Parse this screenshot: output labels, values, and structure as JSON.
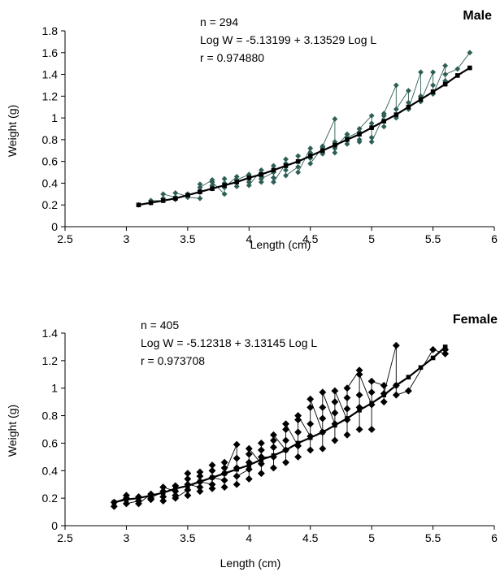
{
  "chart_data": [
    {
      "type": "line",
      "title": "Male",
      "xlabel": "Length (cm)",
      "ylabel": "Weight (g)",
      "xlim": [
        2.5,
        6
      ],
      "ylim": [
        0,
        1.8
      ],
      "xticks": [
        "2.5",
        "3",
        "3.5",
        "4",
        "4.5",
        "5",
        "5.5",
        "6"
      ],
      "yticks": [
        "0",
        "0.2",
        "0.4",
        "0.6",
        "0.8",
        "1",
        "1.2",
        "1.4",
        "1.6",
        "1.8"
      ],
      "annotations": [
        "n = 294",
        "Log W = -5.13199 + 3.13529 Log L",
        "r = 0.974880"
      ],
      "colors": {
        "observed": "#2e5e55",
        "fitted": "#000000"
      },
      "series": [
        {
          "role": "observed",
          "x": [
            3.1,
            3.2,
            3.2,
            3.3,
            3.3,
            3.3,
            3.4,
            3.4,
            3.4,
            3.5,
            3.5,
            3.5,
            3.6,
            3.6,
            3.6,
            3.6,
            3.7,
            3.7,
            3.7,
            3.7,
            3.8,
            3.8,
            3.8,
            3.8,
            3.9,
            3.9,
            3.9,
            3.9,
            4.0,
            4.0,
            4.0,
            4.0,
            4.1,
            4.1,
            4.1,
            4.1,
            4.2,
            4.2,
            4.2,
            4.2,
            4.3,
            4.3,
            4.3,
            4.3,
            4.4,
            4.4,
            4.4,
            4.4,
            4.5,
            4.5,
            4.5,
            4.5,
            4.6,
            4.6,
            4.6,
            4.7,
            4.7,
            4.7,
            4.7,
            4.8,
            4.8,
            4.8,
            4.9,
            4.9,
            4.9,
            4.9,
            5.0,
            5.0,
            5.0,
            5.0,
            5.1,
            5.1,
            5.1,
            5.2,
            5.2,
            5.2,
            5.3,
            5.3,
            5.3,
            5.4,
            5.4,
            5.4,
            5.5,
            5.5,
            5.5,
            5.6,
            5.6,
            5.6,
            5.7,
            5.8
          ],
          "y": [
            0.2,
            0.22,
            0.24,
            0.24,
            0.26,
            0.3,
            0.27,
            0.25,
            0.31,
            0.28,
            0.3,
            0.27,
            0.26,
            0.39,
            0.33,
            0.36,
            0.43,
            0.38,
            0.35,
            0.41,
            0.3,
            0.4,
            0.44,
            0.36,
            0.46,
            0.41,
            0.37,
            0.43,
            0.48,
            0.44,
            0.41,
            0.38,
            0.52,
            0.46,
            0.41,
            0.44,
            0.5,
            0.56,
            0.45,
            0.41,
            0.58,
            0.52,
            0.62,
            0.47,
            0.55,
            0.6,
            0.65,
            0.5,
            0.72,
            0.68,
            0.63,
            0.58,
            0.73,
            0.67,
            0.74,
            0.99,
            0.78,
            0.68,
            0.72,
            0.85,
            0.76,
            0.82,
            0.87,
            0.8,
            0.78,
            0.9,
            1.02,
            0.95,
            0.82,
            0.78,
            1.02,
            0.92,
            1.04,
            1.3,
            1.0,
            1.08,
            1.25,
            1.14,
            1.08,
            1.42,
            1.2,
            1.15,
            1.42,
            1.3,
            1.22,
            1.48,
            1.34,
            1.4,
            1.45,
            1.6
          ]
        },
        {
          "role": "fitted",
          "x": [
            3.1,
            3.2,
            3.3,
            3.4,
            3.5,
            3.6,
            3.7,
            3.8,
            3.9,
            4.0,
            4.1,
            4.2,
            4.3,
            4.4,
            4.5,
            4.6,
            4.7,
            4.8,
            4.9,
            5.0,
            5.1,
            5.2,
            5.3,
            5.4,
            5.5,
            5.6,
            5.7,
            5.8
          ],
          "y": [
            0.2,
            0.22,
            0.24,
            0.26,
            0.29,
            0.32,
            0.35,
            0.38,
            0.41,
            0.45,
            0.48,
            0.52,
            0.56,
            0.6,
            0.65,
            0.7,
            0.75,
            0.8,
            0.85,
            0.91,
            0.97,
            1.03,
            1.1,
            1.17,
            1.24,
            1.31,
            1.39,
            1.46
          ]
        }
      ]
    },
    {
      "type": "line",
      "title": "Female",
      "xlabel": "Length (cm)",
      "ylabel": "Weight (g)",
      "xlim": [
        2.5,
        6
      ],
      "ylim": [
        0,
        1.4
      ],
      "xticks": [
        "2.5",
        "3",
        "3.5",
        "4",
        "4.5",
        "5",
        "5.5",
        "6"
      ],
      "yticks": [
        "0",
        "0.2",
        "0.4",
        "0.6",
        "0.8",
        "1",
        "1.2",
        "1.4"
      ],
      "annotations": [
        "n = 405",
        "Log W = -5.12318 + 3.13145 Log L",
        "r = 0.973708"
      ],
      "colors": {
        "observed": "#000000",
        "fitted": "#000000"
      },
      "series": [
        {
          "role": "observed",
          "x": [
            2.9,
            2.9,
            3.0,
            3.0,
            3.0,
            3.1,
            3.1,
            3.1,
            3.2,
            3.2,
            3.2,
            3.3,
            3.3,
            3.3,
            3.3,
            3.4,
            3.4,
            3.4,
            3.4,
            3.5,
            3.5,
            3.5,
            3.5,
            3.5,
            3.6,
            3.6,
            3.6,
            3.6,
            3.6,
            3.7,
            3.7,
            3.7,
            3.7,
            3.7,
            3.8,
            3.8,
            3.8,
            3.8,
            3.8,
            3.9,
            3.9,
            3.9,
            3.9,
            3.9,
            4.0,
            4.0,
            4.0,
            4.0,
            4.0,
            4.1,
            4.1,
            4.1,
            4.1,
            4.1,
            4.2,
            4.2,
            4.2,
            4.2,
            4.2,
            4.3,
            4.3,
            4.3,
            4.3,
            4.3,
            4.4,
            4.4,
            4.4,
            4.4,
            4.4,
            4.5,
            4.5,
            4.5,
            4.5,
            4.5,
            4.6,
            4.6,
            4.6,
            4.6,
            4.6,
            4.7,
            4.7,
            4.7,
            4.7,
            4.7,
            4.8,
            4.8,
            4.8,
            4.8,
            4.8,
            4.9,
            4.9,
            4.9,
            4.9,
            4.9,
            5.0,
            5.0,
            5.0,
            5.0,
            5.1,
            5.1,
            5.1,
            5.2,
            5.2,
            5.2,
            5.3,
            5.5,
            5.6,
            5.6
          ],
          "y": [
            0.14,
            0.17,
            0.2,
            0.22,
            0.16,
            0.18,
            0.21,
            0.16,
            0.23,
            0.19,
            0.2,
            0.25,
            0.18,
            0.21,
            0.28,
            0.25,
            0.22,
            0.29,
            0.2,
            0.26,
            0.34,
            0.22,
            0.38,
            0.3,
            0.28,
            0.36,
            0.25,
            0.39,
            0.32,
            0.3,
            0.4,
            0.27,
            0.44,
            0.35,
            0.33,
            0.46,
            0.28,
            0.42,
            0.38,
            0.59,
            0.42,
            0.3,
            0.49,
            0.36,
            0.41,
            0.52,
            0.34,
            0.46,
            0.56,
            0.45,
            0.55,
            0.38,
            0.6,
            0.5,
            0.5,
            0.62,
            0.42,
            0.57,
            0.66,
            0.55,
            0.7,
            0.46,
            0.62,
            0.74,
            0.58,
            0.77,
            0.5,
            0.68,
            0.8,
            0.65,
            0.86,
            0.55,
            0.74,
            0.92,
            0.68,
            0.86,
            0.56,
            0.78,
            0.97,
            0.74,
            0.9,
            0.62,
            0.82,
            0.98,
            0.77,
            0.93,
            0.66,
            0.85,
            1.0,
            1.13,
            0.86,
            0.7,
            0.95,
            1.1,
            0.88,
            0.7,
            0.97,
            1.05,
            1.02,
            0.9,
            0.96,
            1.31,
            1.02,
            0.95,
            0.98,
            1.28,
            1.25,
            1.28
          ]
        },
        {
          "role": "fitted",
          "x": [
            2.9,
            3.0,
            3.1,
            3.2,
            3.3,
            3.4,
            3.5,
            3.6,
            3.7,
            3.8,
            3.9,
            4.0,
            4.1,
            4.2,
            4.3,
            4.4,
            4.5,
            4.6,
            4.7,
            4.8,
            4.9,
            5.0,
            5.1,
            5.2,
            5.3,
            5.4,
            5.5,
            5.6
          ],
          "y": [
            0.17,
            0.19,
            0.2,
            0.22,
            0.24,
            0.27,
            0.29,
            0.32,
            0.35,
            0.38,
            0.41,
            0.44,
            0.48,
            0.51,
            0.55,
            0.6,
            0.64,
            0.68,
            0.73,
            0.78,
            0.84,
            0.89,
            0.95,
            1.02,
            1.08,
            1.15,
            1.22,
            1.3
          ]
        }
      ]
    }
  ]
}
